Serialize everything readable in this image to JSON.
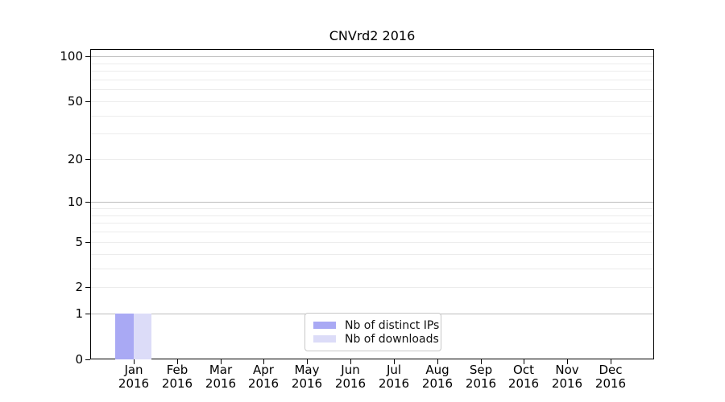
{
  "title": "CNVrd2 2016",
  "colors": {
    "distinct_ips": "#a9a9f4",
    "downloads": "#dcdcf8",
    "grid_major": "#bdbdbd",
    "grid_minor": "#ececec",
    "axis": "#000000"
  },
  "chart_data": {
    "type": "bar",
    "title": "CNVrd2 2016",
    "months": [
      "Jan",
      "Feb",
      "Mar",
      "Apr",
      "May",
      "Jun",
      "Jul",
      "Aug",
      "Sep",
      "Oct",
      "Nov",
      "Dec"
    ],
    "year_label": "2016",
    "series": [
      {
        "name": "Nb of distinct IPs",
        "color": "#a9a9f4",
        "values": [
          1,
          0,
          0,
          0,
          0,
          0,
          0,
          0,
          0,
          0,
          0,
          0
        ]
      },
      {
        "name": "Nb of downloads",
        "color": "#dcdcf8",
        "values": [
          1,
          0,
          0,
          0,
          0,
          0,
          0,
          0,
          0,
          0,
          0,
          0
        ]
      }
    ],
    "y_axis": {
      "scale": "log1p",
      "ticks": [
        0,
        1,
        2,
        5,
        10,
        20,
        50,
        100
      ],
      "ylim": [
        0,
        100
      ],
      "major_gridlines": [
        1,
        10,
        100
      ],
      "minor_gridlines": [
        2,
        3,
        4,
        5,
        6,
        7,
        8,
        9,
        20,
        30,
        40,
        50,
        60,
        70,
        80,
        90
      ]
    },
    "grid": true,
    "legend_position": "lower center"
  }
}
